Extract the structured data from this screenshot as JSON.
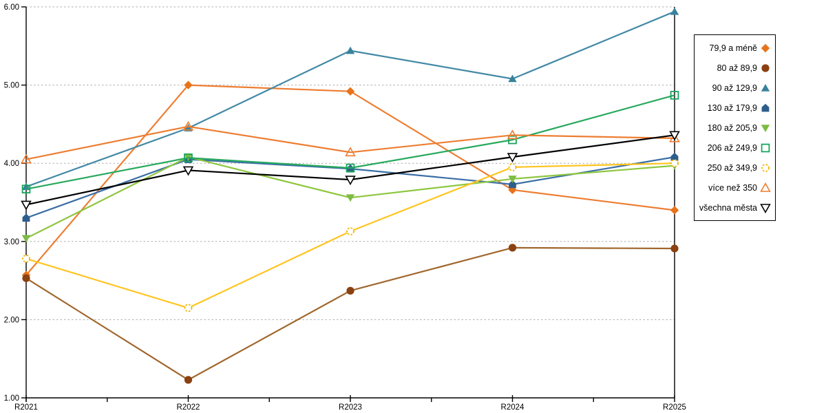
{
  "chart_data": {
    "type": "line",
    "title": "",
    "xlabel": "",
    "ylabel": "",
    "x_categories": [
      "R2021",
      "R2022",
      "R2023",
      "R2024",
      "R2025"
    ],
    "ylim": [
      1.0,
      6.0
    ],
    "y_tick_labels": [
      "1.00",
      "2.00",
      "3.00",
      "4.00",
      "5.00",
      "6.00"
    ],
    "grid": "horizontal-dashed",
    "legend_position": "right",
    "series": [
      {
        "name": "79,9 a méně",
        "marker": "diamond",
        "line_color": "#ED7D31",
        "marker_color": "#E8731A",
        "values": [
          2.57,
          5.0,
          4.92,
          3.66,
          3.4
        ]
      },
      {
        "name": "80 až 89,9",
        "marker": "circle",
        "line_color": "#A0662C",
        "marker_color": "#8B4111",
        "values": [
          2.53,
          1.23,
          2.37,
          2.92,
          2.91
        ]
      },
      {
        "name": "90 až 129,9",
        "marker": "triangle-up",
        "line_color": "#4389A5",
        "marker_color": "#38839B",
        "values": [
          3.7,
          4.45,
          5.44,
          5.08,
          5.94
        ]
      },
      {
        "name": "130 až 179,9",
        "marker": "pentagon",
        "line_color": "#3A6EA5",
        "marker_color": "#2E5E8C",
        "values": [
          3.3,
          4.05,
          3.93,
          3.73,
          4.08
        ]
      },
      {
        "name": "180 až 205,9",
        "marker": "triangle-down",
        "line_color": "#8DC63F",
        "marker_color": "#7DBB42",
        "values": [
          3.04,
          4.08,
          3.56,
          3.8,
          3.97
        ]
      },
      {
        "name": "206 až 249,9",
        "marker": "square-open",
        "line_color": "#27A95D",
        "marker_color": "#17A45C",
        "values": [
          3.67,
          4.07,
          3.94,
          4.3,
          4.87
        ]
      },
      {
        "name": "250 až 349,9",
        "marker": "circle-open-dashed",
        "line_color": "#FFC41F",
        "marker_color": "#F0B800",
        "values": [
          2.78,
          2.15,
          3.13,
          3.95,
          4.0
        ]
      },
      {
        "name": "více než 350",
        "marker": "triangle-up-open",
        "line_color": "#ED7D31",
        "marker_color": "#ED7D31",
        "values": [
          4.05,
          4.47,
          4.14,
          4.36,
          4.32
        ]
      },
      {
        "name": "všechna města",
        "marker": "triangle-down-open",
        "line_color": "#000000",
        "marker_color": "#000000",
        "values": [
          3.47,
          3.91,
          3.79,
          4.08,
          4.36
        ]
      }
    ]
  },
  "colors": {
    "axis": "#000000",
    "gridline": "#ADADAD",
    "background": "#FFFFFF",
    "legend_border": "#000000",
    "text": "#000000"
  }
}
